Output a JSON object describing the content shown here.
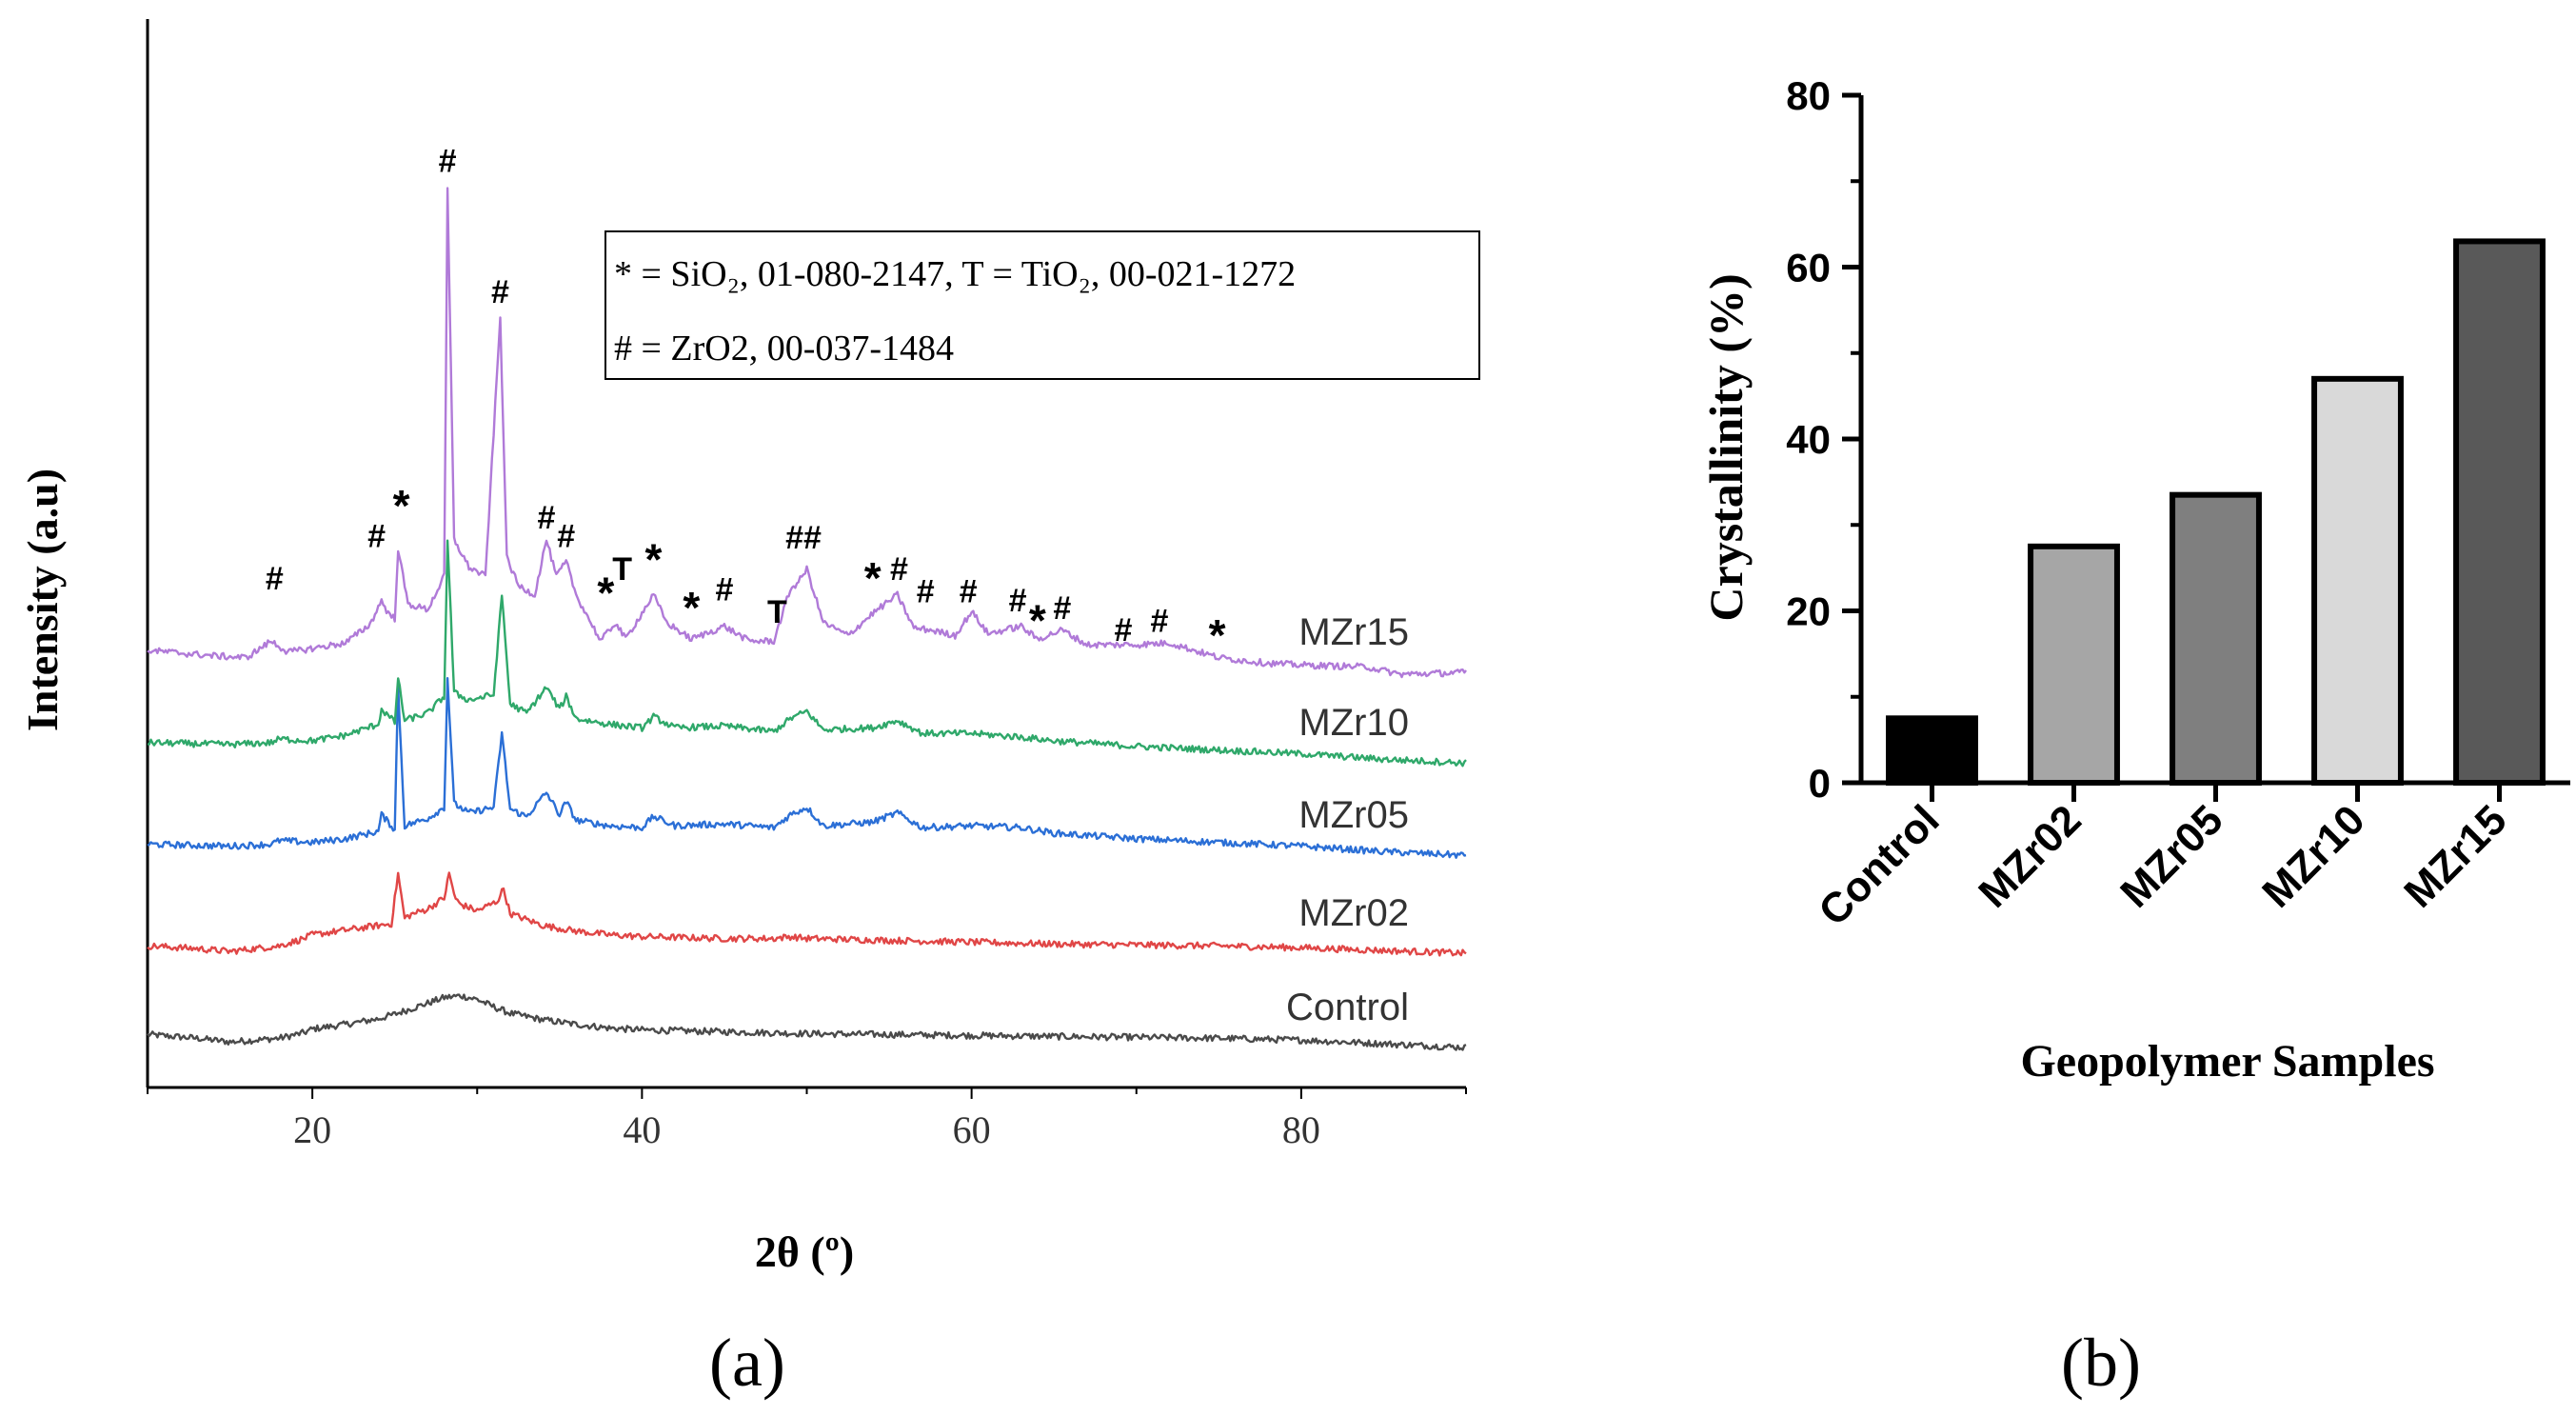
{
  "panels": {
    "a": {
      "label": "(a)"
    },
    "b": {
      "label": "(b)"
    }
  },
  "chart_data": [
    {
      "type": "line",
      "panel": "a",
      "xlabel": "2θ (º)",
      "ylabel": "Intensity (a.u)",
      "xlim": [
        10,
        90
      ],
      "xticks": [
        20,
        40,
        60,
        80
      ],
      "y_ticks_shown": false,
      "legend_box": {
        "line1": "* = SiO₂, 01-080-2147, T = TiO₂, 00-021-1272",
        "line2": "# = ZrO2, 00-037-1484"
      },
      "series": [
        {
          "name": "Control",
          "color": "#4a4a4a",
          "offset": 0,
          "x": [
            10,
            13,
            15,
            18,
            19.5,
            20,
            22,
            24,
            25,
            26,
            27,
            28,
            29,
            30,
            31,
            32,
            34,
            36,
            38,
            40,
            45,
            50,
            55,
            60,
            65,
            70,
            75,
            80,
            85,
            90
          ],
          "y": [
            14,
            10,
            6,
            10,
            16,
            20,
            25,
            31,
            36,
            42,
            48,
            54,
            56,
            52,
            44,
            37,
            30,
            25,
            21,
            19,
            17,
            15,
            14,
            13,
            12,
            11,
            10,
            8,
            4,
            0
          ]
        },
        {
          "name": "MZr02",
          "color": "#e04646",
          "offset": 100,
          "x": [
            10,
            13,
            15,
            18,
            19.5,
            20,
            22,
            24,
            24.8,
            25.2,
            25.6,
            26,
            27,
            28,
            28.3,
            28.7,
            29,
            30,
            31.2,
            31.6,
            32,
            34,
            36,
            38,
            40,
            45,
            48,
            49,
            50,
            55,
            60,
            65,
            70,
            75,
            80,
            85,
            90
          ],
          "y": [
            10,
            7,
            4,
            10,
            18,
            22,
            27,
            32,
            34,
            88,
            40,
            44,
            50,
            62,
            88,
            60,
            55,
            48,
            58,
            72,
            45,
            32,
            26,
            22,
            20,
            18,
            18,
            20,
            18,
            16,
            14,
            12,
            11,
            10,
            8,
            5,
            2
          ]
        },
        {
          "name": "MZr05",
          "color": "#2b6fd6",
          "offset": 200,
          "x": [
            10,
            15,
            17.5,
            18,
            20,
            22,
            24,
            24.2,
            25,
            25.2,
            25.6,
            27,
            28,
            28.2,
            28.6,
            29.5,
            31,
            31.5,
            32,
            33,
            34.2,
            35,
            35.4,
            36,
            38,
            40,
            40.7,
            42,
            45,
            48,
            49,
            50,
            51,
            54,
            55.5,
            57,
            60,
            63,
            65,
            70,
            75,
            80,
            85,
            90
          ],
          "y": [
            20,
            18,
            20,
            24,
            22,
            26,
            34,
            52,
            36,
            190,
            40,
            48,
            60,
            200,
            64,
            54,
            60,
            140,
            58,
            50,
            76,
            52,
            66,
            46,
            40,
            38,
            50,
            40,
            42,
            38,
            52,
            60,
            40,
            44,
            54,
            38,
            40,
            38,
            32,
            26,
            22,
            18,
            12,
            8
          ]
        },
        {
          "name": "MZr10",
          "color": "#2fa86a",
          "offset": 300,
          "x": [
            10,
            15,
            17.5,
            18,
            20,
            22,
            24,
            24.2,
            25,
            25.2,
            25.6,
            27,
            28,
            28.2,
            28.6,
            29.5,
            31,
            31.5,
            32,
            33,
            34.2,
            35,
            35.4,
            36,
            38,
            40,
            40.7,
            42,
            45,
            48,
            49,
            50,
            51,
            54,
            55.5,
            57,
            60,
            63,
            65,
            70,
            75,
            80,
            85,
            90
          ],
          "y": [
            30,
            28,
            30,
            34,
            32,
            38,
            50,
            66,
            52,
            100,
            54,
            62,
            80,
            250,
            84,
            76,
            82,
            190,
            72,
            62,
            90,
            66,
            80,
            56,
            50,
            46,
            58,
            46,
            48,
            42,
            56,
            64,
            44,
            46,
            54,
            40,
            40,
            36,
            32,
            26,
            22,
            18,
            12,
            8
          ]
        },
        {
          "name": "MZr15",
          "color": "#b07ad8",
          "offset": 400,
          "x": [
            10,
            14,
            16,
            17.5,
            18.5,
            20,
            22,
            23.5,
            24.2,
            24.6,
            25,
            25.2,
            25.8,
            27,
            28,
            28.2,
            28.6,
            29.5,
            30.5,
            31.4,
            31.8,
            32.5,
            33.5,
            34.2,
            34.8,
            35.4,
            36,
            37.5,
            38.4,
            39,
            40.7,
            41.5,
            43,
            45,
            46.5,
            48,
            49,
            49.5,
            50,
            51,
            52.5,
            54,
            55.5,
            56.5,
            57.5,
            59,
            60,
            61,
            63,
            64,
            65.5,
            67,
            70,
            72,
            75,
            78,
            80,
            84,
            86,
            90
          ],
          "y": [
            30,
            24,
            22,
            40,
            28,
            32,
            38,
            58,
            84,
            70,
            64,
            140,
            80,
            74,
            110,
            530,
            150,
            120,
            110,
            390,
            130,
            100,
            90,
            150,
            110,
            126,
            90,
            40,
            60,
            42,
            90,
            60,
            42,
            56,
            40,
            40,
            96,
            104,
            118,
            60,
            46,
            70,
            90,
            54,
            52,
            46,
            72,
            48,
            56,
            42,
            52,
            36,
            36,
            38,
            22,
            16,
            14,
            12,
            4,
            6
          ]
        }
      ],
      "annotations": [
        {
          "text": "#",
          "x": 17.7,
          "level": 96
        },
        {
          "text": "#",
          "x": 23.9,
          "level": 142
        },
        {
          "text": "*",
          "x": 25.4,
          "level": 170
        },
        {
          "text": "#",
          "x": 28.2,
          "level": 548
        },
        {
          "text": "#",
          "x": 31.4,
          "level": 406
        },
        {
          "text": "#",
          "x": 34.2,
          "level": 162
        },
        {
          "text": "#",
          "x": 35.4,
          "level": 142
        },
        {
          "text": "*",
          "x": 37.8,
          "level": 76
        },
        {
          "text": "T",
          "x": 38.8,
          "level": 106
        },
        {
          "text": "*",
          "x": 40.7,
          "level": 112
        },
        {
          "text": "*",
          "x": 43.0,
          "level": 60
        },
        {
          "text": "#",
          "x": 45.0,
          "level": 84
        },
        {
          "text": "T",
          "x": 48.2,
          "level": 60
        },
        {
          "text": "##",
          "x": 49.8,
          "level": 140
        },
        {
          "text": "*",
          "x": 54.0,
          "level": 92
        },
        {
          "text": "#",
          "x": 55.6,
          "level": 106
        },
        {
          "text": "#",
          "x": 57.2,
          "level": 82
        },
        {
          "text": "#",
          "x": 59.8,
          "level": 82
        },
        {
          "text": "#",
          "x": 62.8,
          "level": 72
        },
        {
          "text": "*",
          "x": 64.0,
          "level": 46
        },
        {
          "text": "#",
          "x": 65.5,
          "level": 64
        },
        {
          "text": "#",
          "x": 69.2,
          "level": 40
        },
        {
          "text": "#",
          "x": 71.4,
          "level": 50
        },
        {
          "text": "*",
          "x": 74.9,
          "level": 30
        }
      ]
    },
    {
      "type": "bar",
      "panel": "b",
      "xlabel": "Geopolymer Samples",
      "ylabel": "Crystallinity (%)",
      "ylim": [
        0,
        80
      ],
      "yticks": [
        0,
        20,
        40,
        60,
        80
      ],
      "categories": [
        "Control",
        "MZr02",
        "MZr05",
        "MZr10",
        "MZr15"
      ],
      "values": [
        7.5,
        27.5,
        33.5,
        47.0,
        63.0
      ],
      "colors": [
        "#000000",
        "#a6a6a6",
        "#7f7f7f",
        "#d9d9d9",
        "#595959"
      ]
    }
  ]
}
